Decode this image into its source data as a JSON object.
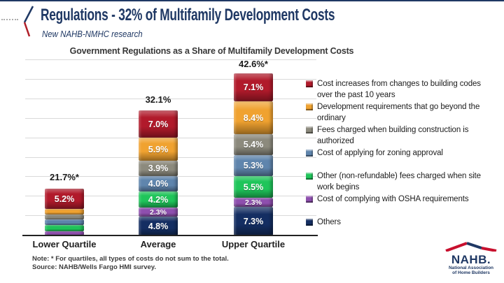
{
  "header": {
    "title": "Regulations - 32% of Multifamily Development Costs",
    "subtitle": "New NAHB-NMHC research"
  },
  "chart_data": {
    "type": "bar",
    "stacked": true,
    "title": "Government Regulations as a Share of Multifamily Development Costs",
    "categories": [
      "Lower Quartile",
      "Average",
      "Upper Quartile"
    ],
    "totals": [
      "21.7%*",
      "32.1%",
      "42.6%*"
    ],
    "ylim": [
      0,
      45
    ],
    "gridline_step_pct": 5,
    "grid": true,
    "legend_position": "right",
    "series": [
      {
        "name": "Others",
        "color": "#142E62",
        "values": [
          0,
          4.8,
          7.3
        ],
        "labels": [
          "",
          "4.8%",
          "7.3%"
        ]
      },
      {
        "name": "Cost of complying with OSHA requirements",
        "color": "#8E4FAE",
        "values": [
          1.1,
          2.3,
          2.3
        ],
        "labels": [
          "",
          "2.3%",
          "2.3%"
        ]
      },
      {
        "name": "Other (non-refundable) fees charged when site work begins",
        "color": "#1FC55A",
        "values": [
          1.7,
          4.2,
          5.5
        ],
        "labels": [
          "",
          "4.2%",
          "5.5%"
        ]
      },
      {
        "name": "Cost of applying for zoning approval",
        "color": "#5F85AD",
        "values": [
          1.5,
          4.0,
          5.3
        ],
        "labels": [
          "",
          "4.0%",
          "5.3%"
        ]
      },
      {
        "name": "Fees charged when building construction is authorized",
        "color": "#8C8A7D",
        "values": [
          1.3,
          3.9,
          5.4
        ],
        "labels": [
          "",
          "3.9%",
          "5.4%"
        ]
      },
      {
        "name": "Development requirements that go beyond the ordinary",
        "color": "#F0A230",
        "values": [
          1.4,
          5.9,
          8.4
        ],
        "labels": [
          "",
          "5.9%",
          "8.4%"
        ]
      },
      {
        "name": "Cost increases from changes to building codes over the past 10 years",
        "color": "#B11A2B",
        "values": [
          5.2,
          7.0,
          7.1
        ],
        "labels": [
          "5.2%",
          "7.0%",
          "7.1%"
        ]
      }
    ]
  },
  "legend": {
    "items": [
      {
        "label": "Cost increases from changes to building codes over the past 10 years",
        "color": "#B11A2B",
        "gap_before": false
      },
      {
        "label": "Development requirements that go beyond the ordinary",
        "color": "#F0A230",
        "gap_before": false
      },
      {
        "label": "Fees charged when building construction is authorized",
        "color": "#8C8A7D",
        "gap_before": false
      },
      {
        "label": "Cost of applying for zoning approval",
        "color": "#5F85AD",
        "gap_before": false
      },
      {
        "label": "Other (non-refundable) fees charged when site work begins",
        "color": "#1FC55A",
        "gap_before": true
      },
      {
        "label": "Cost of complying with OSHA requirements",
        "color": "#8E4FAE",
        "gap_before": false
      },
      {
        "label": "Others",
        "color": "#142E62",
        "gap_before": true
      }
    ]
  },
  "notes": {
    "line1": "Note: * For quartiles,  all types of costs do not sum to the total.",
    "line2": "Source: NAHB/Wells Fargo HMI survey."
  },
  "logo": {
    "wordmark": "NAHB.",
    "sub1": "National Association",
    "sub2": "of Home Builders",
    "red": "#C8102E",
    "navy": "#1F3864"
  },
  "colors": {
    "accent_navy": "#1F3864",
    "accent_red": "#B01E28",
    "gridline": "#D9D9D9",
    "axis": "#222222"
  }
}
